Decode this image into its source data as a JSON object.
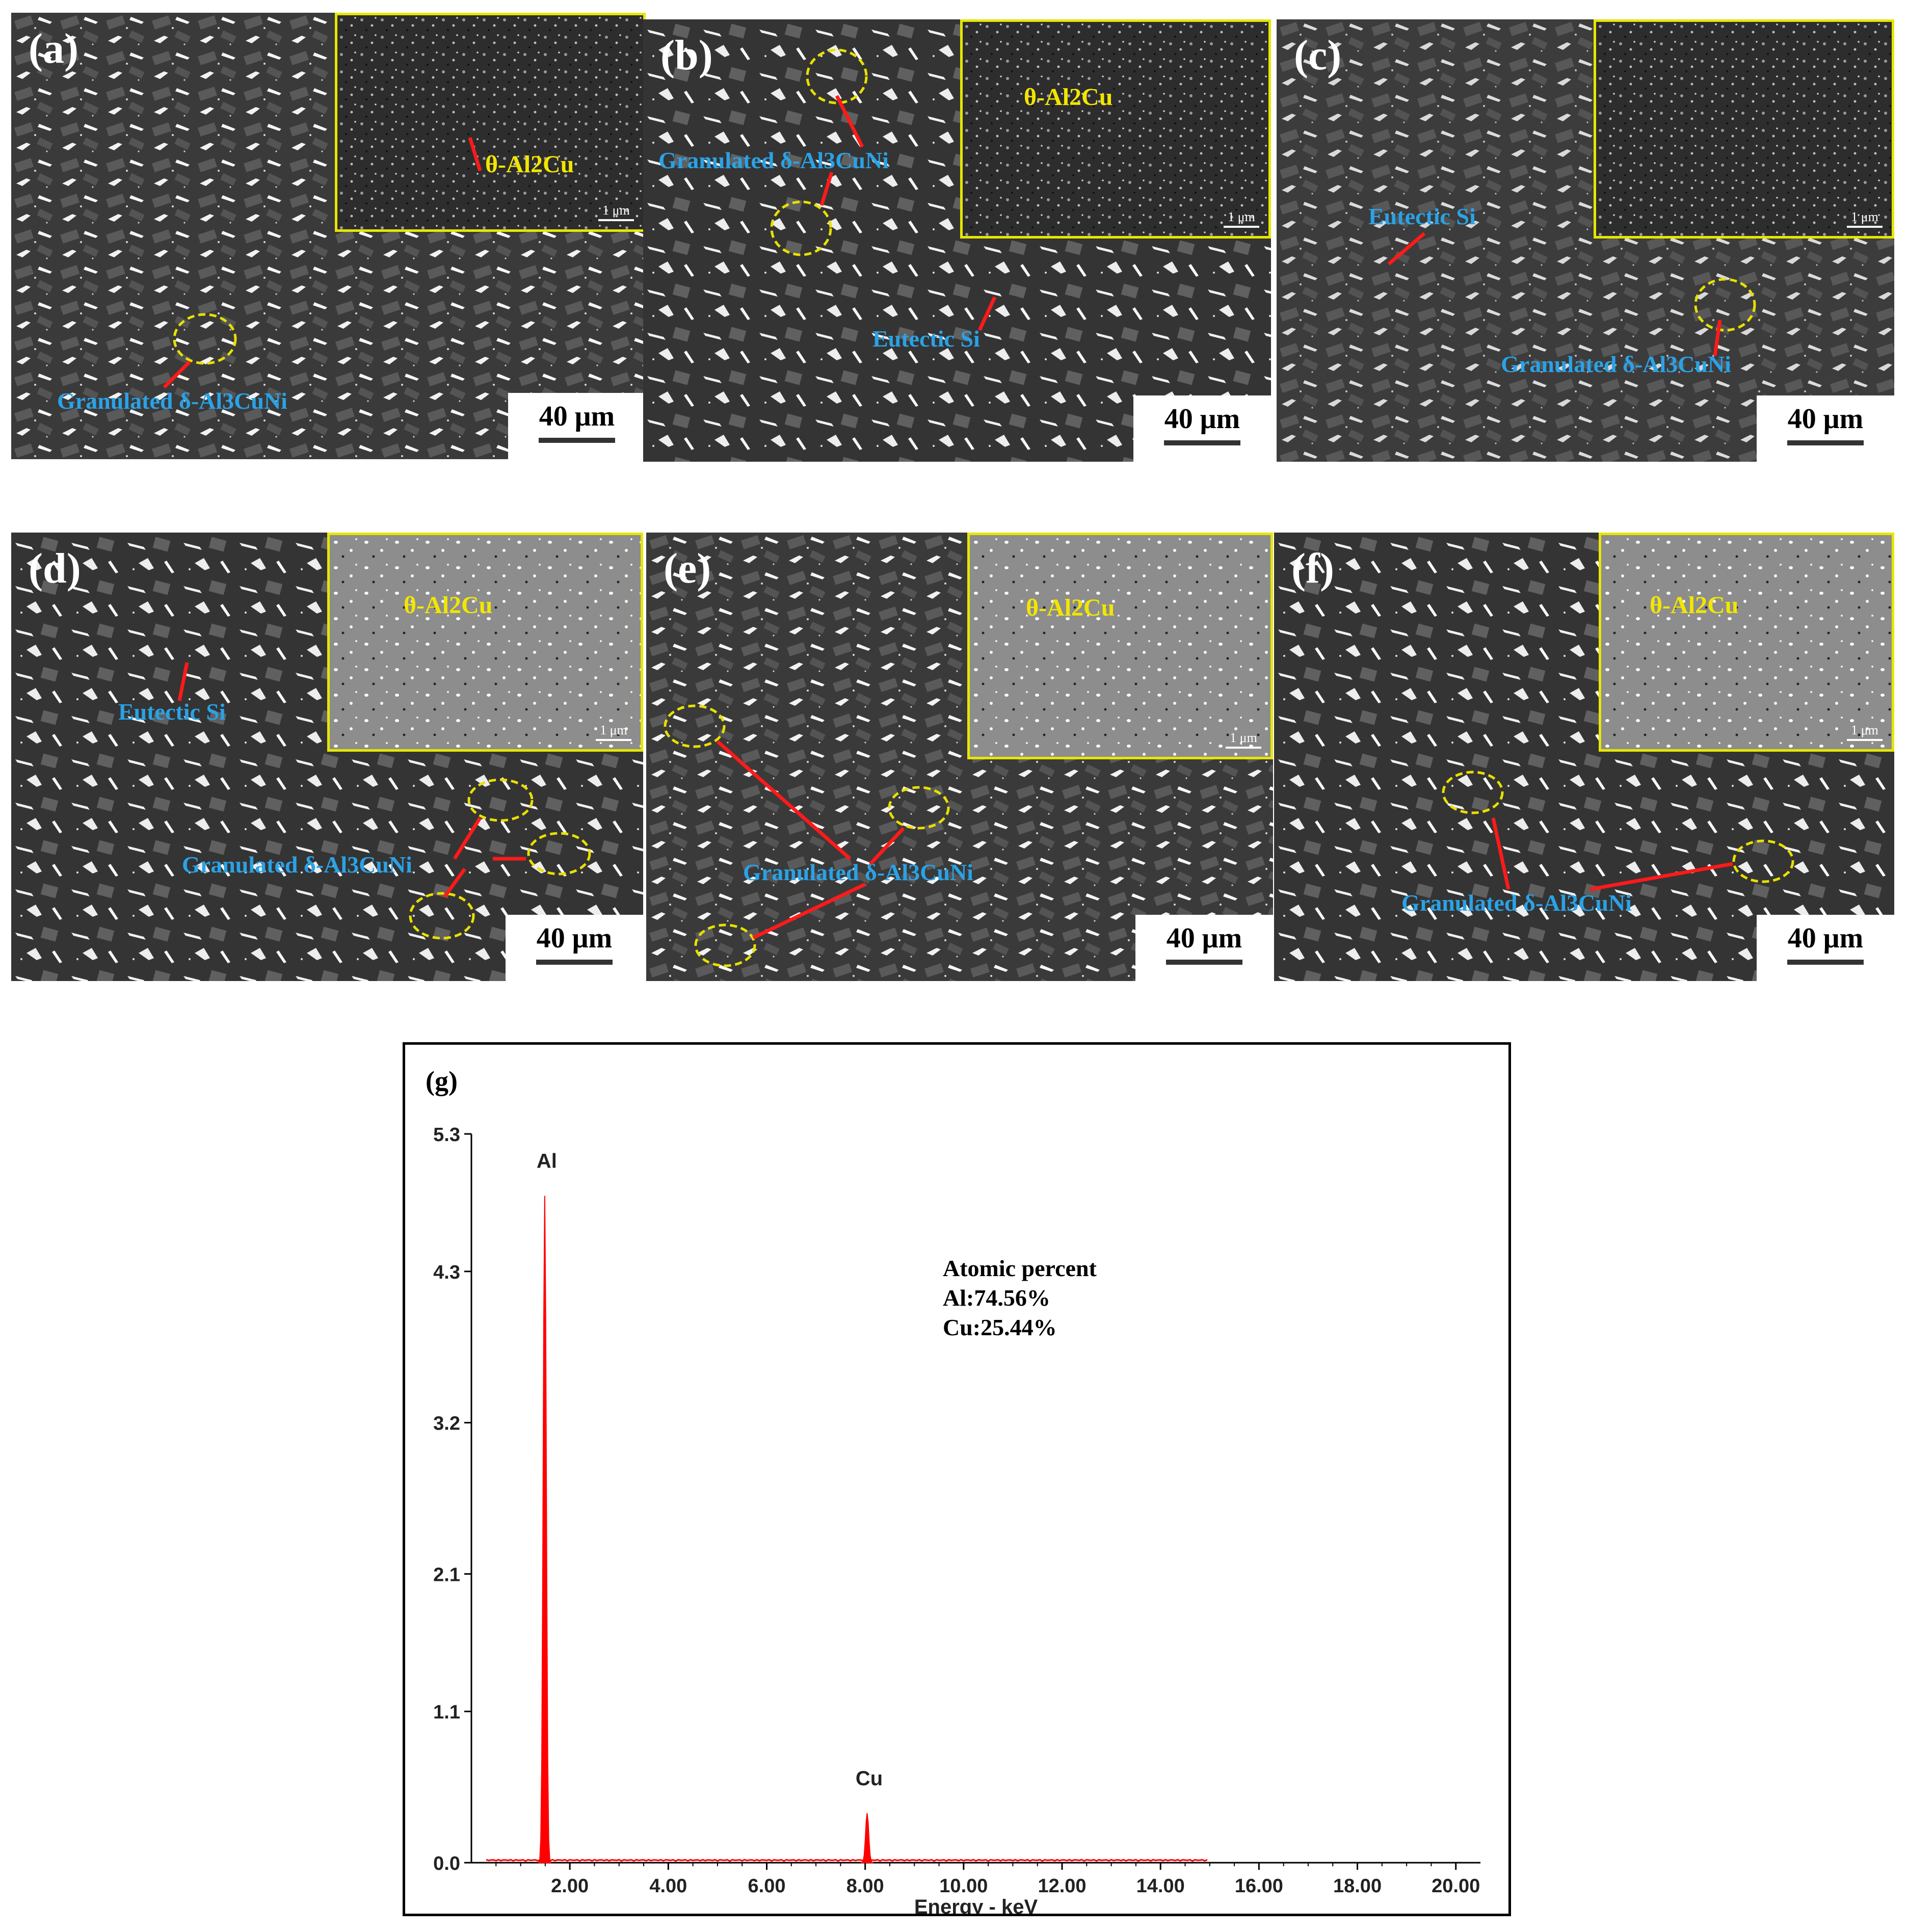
{
  "panels": [
    {
      "id": "a",
      "label": "(a)",
      "inset_label": "θ-Al2Cu",
      "inset_scale": "1 μm",
      "scale": "40 μm",
      "annotations": [
        "Granulated δ-Al3CuNi"
      ]
    },
    {
      "id": "b",
      "label": "(b)",
      "inset_label": "θ-Al2Cu",
      "inset_scale": "1 μm",
      "scale": "40 μm",
      "annotations": [
        "Granulated δ-Al3CuNi",
        "Eutectic Si"
      ]
    },
    {
      "id": "c",
      "label": "(c)",
      "inset_label": "",
      "inset_scale": "1 μm",
      "scale": "40 μm",
      "annotations": [
        "Eutectic Si",
        "Granulated δ-Al3CuNi"
      ]
    },
    {
      "id": "d",
      "label": "(d)",
      "inset_label": "θ-Al2Cu",
      "inset_scale": "1 μm",
      "scale": "40 μm",
      "annotations": [
        "Eutectic Si",
        "Granulated δ-Al3CuNi"
      ]
    },
    {
      "id": "e",
      "label": "(e)",
      "inset_label": "θ-Al2Cu",
      "inset_scale": "1 μm",
      "scale": "40 μm",
      "annotations": [
        "Granulated δ-Al3CuNi"
      ]
    },
    {
      "id": "f",
      "label": "(f)",
      "inset_label": "θ-Al2Cu",
      "inset_scale": "1 μm",
      "scale": "40 μm",
      "annotations": [
        "Granulated δ-Al3CuNi"
      ]
    }
  ],
  "colors": {
    "annotation": "#2aa2e6",
    "arrow": "#ff1a1a",
    "ellipse": "#e8e000",
    "inset_border": "#e6e600",
    "spectrum": "#ff0000"
  },
  "chart_data": {
    "type": "line",
    "panel_label": "(g)",
    "xlabel": "Energy - keV",
    "ylabel": "",
    "xlim": [
      0,
      20.5
    ],
    "ylim": [
      0,
      5.3
    ],
    "x_ticks": [
      "2.00",
      "4.00",
      "6.00",
      "8.00",
      "10.00",
      "12.00",
      "14.00",
      "16.00",
      "18.00",
      "20.00"
    ],
    "y_ticks": [
      "0.0",
      "1.1",
      "2.1",
      "3.2",
      "4.3",
      "5.3"
    ],
    "peaks": [
      {
        "element": "Al",
        "energy": 1.49,
        "intensity": 4.85
      },
      {
        "element": "Cu",
        "energy": 8.04,
        "intensity": 0.36
      }
    ],
    "composition_title": "Atomic percent",
    "composition": [
      "Al:74.56%",
      "Cu:25.44%"
    ]
  }
}
